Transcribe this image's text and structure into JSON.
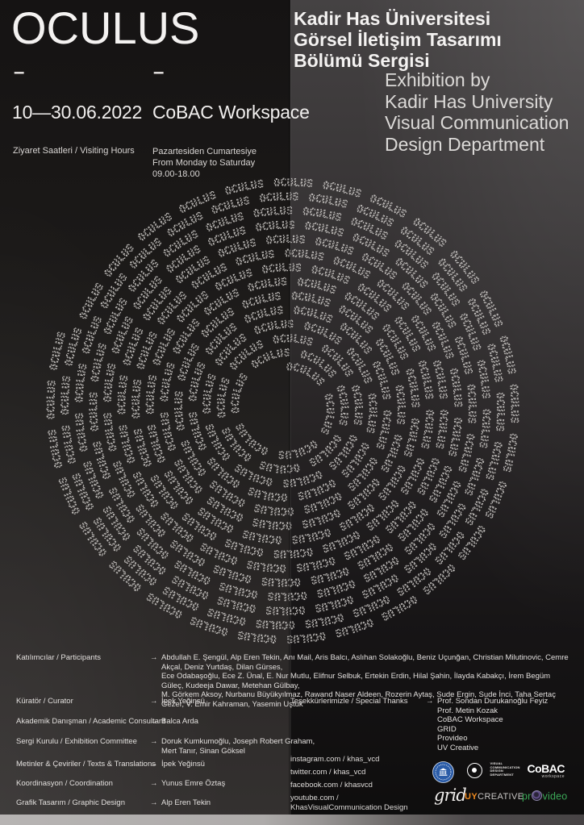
{
  "header": {
    "title": "OCULUS",
    "dash": "–",
    "date": "10—30.06.2022",
    "venue": "CoBAC Workspace",
    "visiting_label": "Ziyaret Saatleri / Visiting Hours",
    "hours": [
      "Pazartesiden Cumartesiye",
      "From Monday to Saturday",
      "09.00-18.00"
    ],
    "title_tr": [
      "Kadir Has Üniversitesi",
      "Görsel İletişim Tasarımı",
      "Bölümü Sergisi"
    ],
    "title_en": [
      "Exhibition by",
      "Kadir Has University",
      "Visual Communication",
      "Design Department"
    ]
  },
  "spiral": {
    "word": "OCULUS"
  },
  "ui": {
    "arrow": "→"
  },
  "credits": {
    "rows": [
      {
        "label": "Katılımcılar / Participants",
        "lines": [
          "Abdullah E. Şengül, Alp Eren Tekin, Anı Mail, Aris Balcı, Aslıhan Solakoğlu, Beniz Uçunğan, Christian Milutinovic, Cemre Akçal, Deniz Yurtdaş, Dilan Gürses,",
          "Ece Odabaşoğlu, Ece Z. Ünal, E. Nur Mutlu, Elifnur Selbuk, Ertekin Erdin, Hilal Şahin, İlayda Kabakçı, İrem Begüm Güleç, Kudeeja Dawar, Metehan Gülbay,",
          "M. Görkem Aksoy, Nurbanu Büyükyılmaz, Rawand Naser Aldeen, Rozerin Aytaş, Sude Ergin, Sude İnci, Taha Sertaç Gezer, V. Emir Kahraman, Yasemin Uştuk"
        ]
      },
      {
        "label": "Küratör / Curator",
        "lines": [
          "İpek Yeğinsü"
        ]
      },
      {
        "label": "Akademik Danışman / Academic Consultant",
        "lines": [
          "Balca Arda"
        ]
      },
      {
        "label": "Sergi Kurulu / Exhibition Committee",
        "lines": [
          "Doruk Kumkumoğlu, Joseph Robert Graham,",
          "Mert Tanır, Sinan Göksel"
        ]
      },
      {
        "label": "Metinler & Çeviriler / Texts & Translations",
        "lines": [
          "İpek Yeğinsü"
        ]
      },
      {
        "label": "Koordinasyon / Coordination",
        "lines": [
          "Yunus Emre Öztaş"
        ]
      },
      {
        "label": "Grafik Tasarım / Graphic Design",
        "lines": [
          "Alp Eren Tekin"
        ]
      }
    ],
    "thanks": {
      "label": "Teşekkürlerimizle / Special Thanks",
      "values": [
        "Prof. Sondan Durukanoğlu Feyiz",
        "Prof. Metin Kozak",
        "CoBAC Workspace",
        "GRID",
        "Provideo",
        "UV Creative"
      ]
    }
  },
  "socials": {
    "instagram": "instagram.com / khas_vcd",
    "twitter": "twitter.com / khas_vcd",
    "facebook": "facebook.com / khasvcd",
    "youtube_line1": "youtube.com /",
    "youtube_line2": "KhasVisualCommunication Design"
  },
  "logos": {
    "vcd_lines": [
      "VISUAL",
      "COMMUNICATION",
      "DESIGN",
      "DEPARTMENT"
    ],
    "cobac_name": "CoBAC",
    "cobac_sub": "workspace",
    "grid": "grid",
    "uy_bold": "UY",
    "uy_rest": "CREATIVE",
    "provideo_pre": "pr",
    "provideo_post": "video"
  },
  "colors": {
    "background_left": "#1B1918",
    "background_right": "#2A2728",
    "text_primary": "#F2F0EF",
    "spiral_text": "#D4D1CE",
    "uy_orange": "#F08A1F",
    "provideo_green": "#3BA757",
    "khas_seal_blue": "#2B5CA7",
    "lens_purple": "#6F5A9E"
  }
}
